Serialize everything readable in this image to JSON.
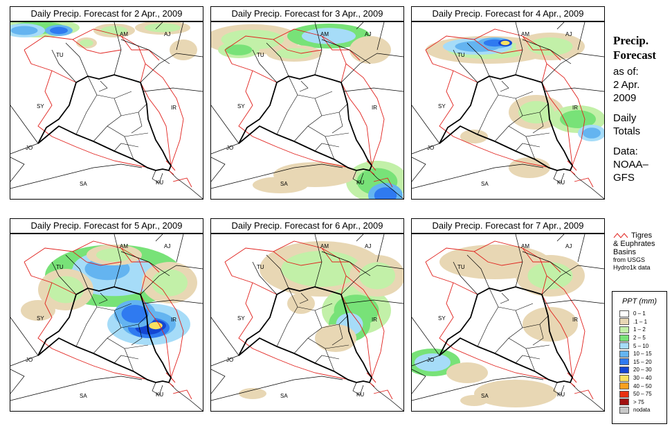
{
  "panels": [
    {
      "title": "Daily Precip. Forecast for  2 Apr., 2009"
    },
    {
      "title": "Daily Precip. Forecast for  3 Apr., 2009"
    },
    {
      "title": "Daily Precip. Forecast for  4 Apr., 2009"
    },
    {
      "title": "Daily Precip. Forecast for  5 Apr., 2009"
    },
    {
      "title": "Daily Precip. Forecast for  6 Apr., 2009"
    },
    {
      "title": "Daily Precip. Forecast for  7 Apr., 2009"
    }
  ],
  "country_labels": [
    "AM",
    "AJ",
    "TU",
    "SY",
    "IR",
    "JO",
    "SA",
    "KU"
  ],
  "sidebar": {
    "title_line1": "Precip.",
    "title_line2": "Forecast",
    "asof_line1": "as of:",
    "asof_line2": "2 Apr.",
    "asof_line3": "2009",
    "totals_line1": "Daily",
    "totals_line2": "Totals",
    "data_line1": "Data:",
    "data_line2": "NOAA–",
    "data_line3": "GFS"
  },
  "basin_key": {
    "line1": "Tigres",
    "line2": "& Euphrates",
    "line3": "Basins",
    "line4": "from USGS",
    "line5": "Hydro1k data"
  },
  "legend": {
    "title": "PPT (mm)",
    "items": [
      {
        "label": "0 – 1",
        "color": "#ffffff"
      },
      {
        "label": ".1 – 1",
        "color": "#e8d7b4"
      },
      {
        "label": "1 – 2",
        "color": "#c2f0a8"
      },
      {
        "label": "2 – 5",
        "color": "#78e278"
      },
      {
        "label": "5 – 10",
        "color": "#a6dcf8"
      },
      {
        "label": "10 – 15",
        "color": "#64b4f0"
      },
      {
        "label": "15 – 20",
        "color": "#2f7af0"
      },
      {
        "label": "20 – 30",
        "color": "#1446d2"
      },
      {
        "label": "30 – 40",
        "color": "#f8e060"
      },
      {
        "label": "40 – 50",
        "color": "#f8a020"
      },
      {
        "label": "50 – 75",
        "color": "#e83010"
      },
      {
        "label": "> 75",
        "color": "#a01010"
      },
      {
        "label": "nodata",
        "color": "#c8c8c8"
      }
    ]
  },
  "colors": {
    "basin_outline": "#e0201c",
    "country_border": "#000000",
    "province_border": "#000000"
  }
}
